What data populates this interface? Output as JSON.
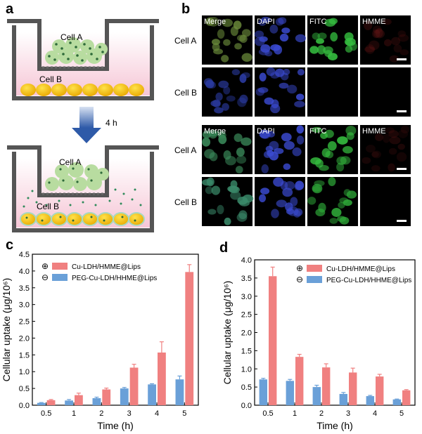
{
  "panels": {
    "a": "a",
    "b": "b",
    "c": "c",
    "d": "d"
  },
  "schematic": {
    "cell_a_label": "Cell A",
    "cell_b_label": "Cell B",
    "arrow_label": "4 h"
  },
  "microscopy": {
    "channels": [
      "Merge",
      "DAPI",
      "FITC",
      "HMME"
    ],
    "rows": [
      "Cell A",
      "Cell B",
      "Cell A",
      "Cell B"
    ],
    "channel_colors": {
      "Merge": "#2a6a4a",
      "DAPI": "#1c2a8c",
      "FITC": "#1e8a2a",
      "HMME": "#5a1010"
    }
  },
  "chart_data": [
    {
      "type": "bar",
      "panel": "c",
      "categories": [
        "0.5",
        "1",
        "2",
        "3",
        "4",
        "5"
      ],
      "series": [
        {
          "name": "Cu-LDH/HMME@Lips",
          "symbol": "⊕",
          "color": "#f08080",
          "values": [
            0.15,
            0.3,
            0.47,
            1.12,
            1.57,
            3.97
          ],
          "errors": [
            0.02,
            0.06,
            0.04,
            0.1,
            0.32,
            0.22
          ]
        },
        {
          "name": "PEG-Cu-LDH/HHME@Lips",
          "symbol": "⊖",
          "color": "#6aa0d8",
          "values": [
            0.07,
            0.14,
            0.21,
            0.5,
            0.62,
            0.77
          ],
          "errors": [
            0.01,
            0.03,
            0.03,
            0.03,
            0.02,
            0.1
          ]
        }
      ],
      "xlabel": "Time (h)",
      "ylabel": "Cellular uptake (μg/10⁶)",
      "ylim": [
        0,
        4.5
      ],
      "yticks": [
        0,
        0.5,
        1.0,
        1.5,
        2.0,
        2.5,
        3.0,
        3.5,
        4.0,
        4.5
      ],
      "ytick_labels": [
        "0.0",
        "0.5",
        "1.0",
        "1.5",
        "2.0",
        "2.5",
        "3.0",
        "3.5",
        "4.0",
        "4.5"
      ],
      "legend": "top-left",
      "grid": false
    },
    {
      "type": "bar",
      "panel": "d",
      "categories": [
        "0.5",
        "1",
        "2",
        "3",
        "4",
        "5"
      ],
      "series": [
        {
          "name": "Cu-LDH/HMME@Lips",
          "symbol": "⊕",
          "color": "#f08080",
          "values": [
            3.55,
            1.33,
            1.04,
            0.9,
            0.79,
            0.41
          ],
          "errors": [
            0.25,
            0.07,
            0.1,
            0.12,
            0.06,
            0.02
          ]
        },
        {
          "name": "PEG-Cu-LDH/HHME@Lips",
          "symbol": "⊖",
          "color": "#6aa0d8",
          "values": [
            0.71,
            0.67,
            0.5,
            0.31,
            0.25,
            0.16
          ],
          "errors": [
            0.03,
            0.04,
            0.05,
            0.04,
            0.02,
            0.01
          ]
        }
      ],
      "xlabel": "Time (h)",
      "ylabel": "Cellular uptake (μg/10⁶)",
      "ylim": [
        0,
        4.0
      ],
      "yticks": [
        0,
        0.5,
        1.0,
        1.5,
        2.0,
        2.5,
        3.0,
        3.5,
        4.0
      ],
      "ytick_labels": [
        "0.0",
        "0.5",
        "1.0",
        "1.5",
        "2.0",
        "2.5",
        "3.0",
        "3.5",
        "4.0"
      ],
      "legend": "top-right",
      "grid": false
    }
  ]
}
